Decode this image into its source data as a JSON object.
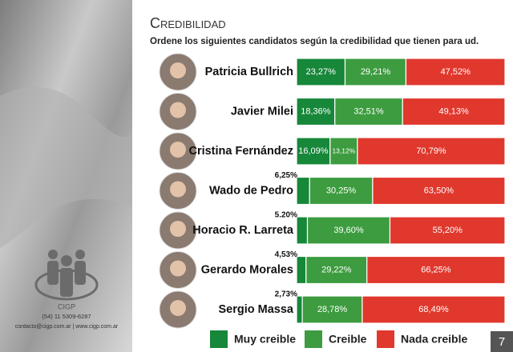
{
  "chart_data": {
    "type": "bar",
    "orientation": "horizontal",
    "stacked": true,
    "title": "Credibilidad",
    "subtitle": "Ordene los siguientes candidatos según la credibilidad que tienen para ud.",
    "categories": [
      "Patricia Bullrich",
      "Javier Milei",
      "Cristina Fernández",
      "Wado de Pedro",
      "Horacio R. Larreta",
      "Gerardo Morales",
      "Sergio Massa"
    ],
    "series": [
      {
        "name": "Muy creible",
        "color": "#17873a",
        "values": [
          23.27,
          18.36,
          16.09,
          6.25,
          5.2,
          4.53,
          2.73
        ],
        "value_labels": [
          "23,27%",
          "18,36%",
          "16,09%",
          "6,25%",
          "5.20%",
          "4,53%",
          "2,73%"
        ]
      },
      {
        "name": "Creible",
        "color": "#3d9c3f",
        "values": [
          29.21,
          32.51,
          13.12,
          30.25,
          39.6,
          29.22,
          28.78
        ],
        "value_labels": [
          "29,21%",
          "32,51%",
          "13,12%",
          "30,25%",
          "39,60%",
          "29,22%",
          "28,78%"
        ]
      },
      {
        "name": "Nada creible",
        "color": "#e0382d",
        "values": [
          47.52,
          49.13,
          70.79,
          63.5,
          55.2,
          66.25,
          68.49
        ],
        "value_labels": [
          "47,52%",
          "49,13%",
          "70,79%",
          "63,50%",
          "55,20%",
          "66,25%",
          "68,49%"
        ]
      }
    ],
    "legend": "bottom"
  },
  "footer": {
    "logo": "CIGP",
    "phone": "(54) 11 5309-6287",
    "contact": "contacto@cigp.com.ar | www.cigp.com.ar",
    "page_number": "7"
  }
}
